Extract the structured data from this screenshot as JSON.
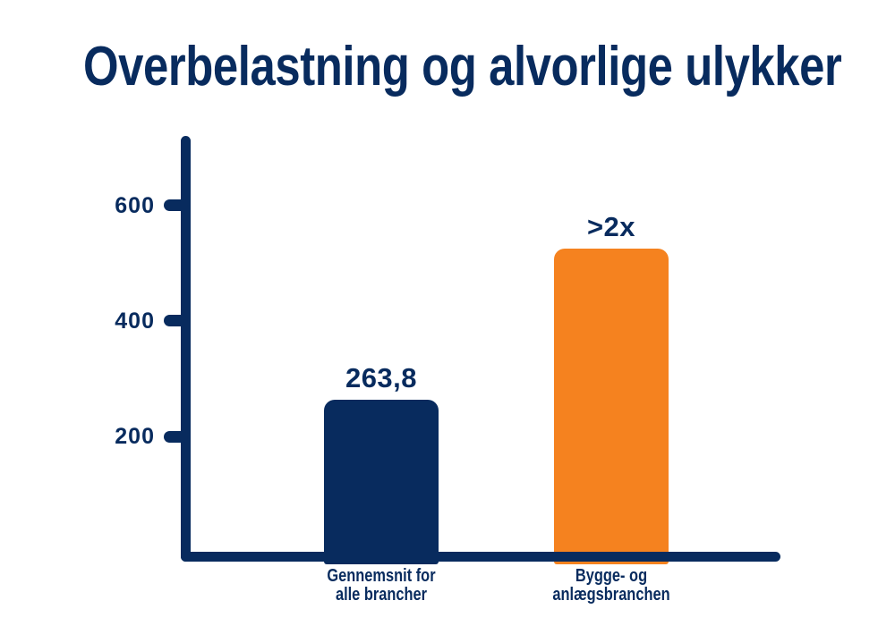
{
  "title": "Overbelastning og alvorlige ulykker",
  "colors": {
    "navy": "#082b5e",
    "orange": "#f5821f",
    "background": "#ffffff"
  },
  "chart_data": {
    "type": "bar",
    "title": "Overbelastning og alvorlige ulykker",
    "categories": [
      "Gennemsnit for alle brancher",
      "Bygge- og anlægsbranchen"
    ],
    "categories_lines": [
      [
        "Gennemsnit for",
        "alle brancher"
      ],
      [
        "Bygge- og",
        "anlægsbranchen"
      ]
    ],
    "values": [
      263.8,
      525
    ],
    "bar_labels": [
      "263,8",
      ">2x"
    ],
    "bar_colors": [
      "#082b5e",
      "#f5821f"
    ],
    "yticks": [
      200,
      400,
      600
    ],
    "ylim": [
      0,
      720
    ],
    "xlabel": "",
    "ylabel": "",
    "grid": false,
    "legend": null
  }
}
